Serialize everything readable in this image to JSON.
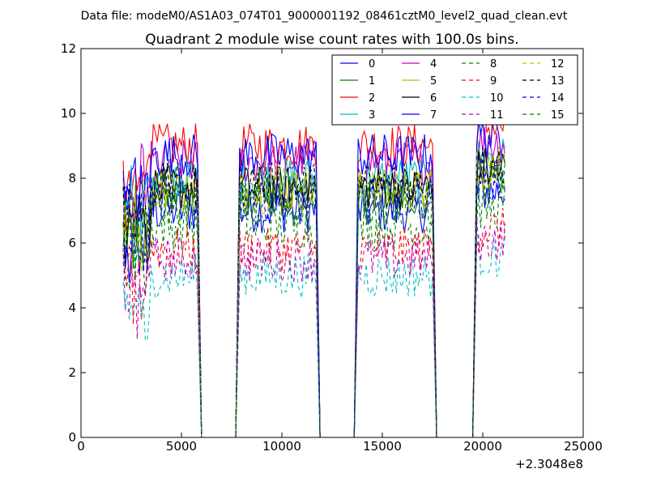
{
  "suptitle": "Data file: modeM0/AS1A03_074T01_9000001192_08461cztM0_level2_quad_clean.evt",
  "chart_data": {
    "type": "line",
    "title": "Quadrant 2 module wise count rates with 100.0s bins.",
    "xlabel": "",
    "ylabel": "",
    "x_offset_label": "+2.3048e8",
    "xlim": [
      0,
      25000
    ],
    "ylim": [
      0,
      12
    ],
    "xticks": [
      0,
      5000,
      10000,
      15000,
      20000,
      25000
    ],
    "xtick_labels": [
      "0",
      "5000",
      "10000",
      "15000",
      "20000",
      "25000"
    ],
    "yticks": [
      0,
      2,
      4,
      6,
      8,
      10,
      12
    ],
    "ytick_labels": [
      "0",
      "2",
      "4",
      "6",
      "8",
      "10",
      "12"
    ],
    "grid": false,
    "legend_position": "top-right",
    "legend_columns": 4,
    "segments": [
      [
        2100,
        5800
      ],
      [
        7900,
        11700
      ],
      [
        13800,
        17500
      ],
      [
        19700,
        21100
      ]
    ],
    "gap_value": 0,
    "series": [
      {
        "name": "0",
        "color": "#0000ff",
        "style": "solid",
        "level": 7.0
      },
      {
        "name": "1",
        "color": "#008000",
        "style": "solid",
        "level": 7.5
      },
      {
        "name": "2",
        "color": "#ff0000",
        "style": "solid",
        "level": 9.0
      },
      {
        "name": "3",
        "color": "#00bfbf",
        "style": "solid",
        "level": 8.0
      },
      {
        "name": "4",
        "color": "#bf00bf",
        "style": "solid",
        "level": 8.5
      },
      {
        "name": "5",
        "color": "#bfbf00",
        "style": "solid",
        "level": 7.6
      },
      {
        "name": "6",
        "color": "#000000",
        "style": "solid",
        "level": 7.7
      },
      {
        "name": "7",
        "color": "#0000ff",
        "style": "solid",
        "level": 8.7
      },
      {
        "name": "8",
        "color": "#008000",
        "style": "dashed",
        "level": 6.5
      },
      {
        "name": "9",
        "color": "#ff0000",
        "style": "dashed",
        "level": 5.8
      },
      {
        "name": "10",
        "color": "#00bfbf",
        "style": "dashed",
        "level": 5.0
      },
      {
        "name": "11",
        "color": "#bf00bf",
        "style": "dashed",
        "level": 5.5
      },
      {
        "name": "12",
        "color": "#bfbf00",
        "style": "dashed",
        "level": 7.7
      },
      {
        "name": "13",
        "color": "#000000",
        "style": "dashed",
        "level": 7.8
      },
      {
        "name": "14",
        "color": "#0000ff",
        "style": "dashed",
        "level": 7.4
      },
      {
        "name": "15",
        "color": "#008000",
        "style": "dashed",
        "level": 7.2
      }
    ]
  }
}
